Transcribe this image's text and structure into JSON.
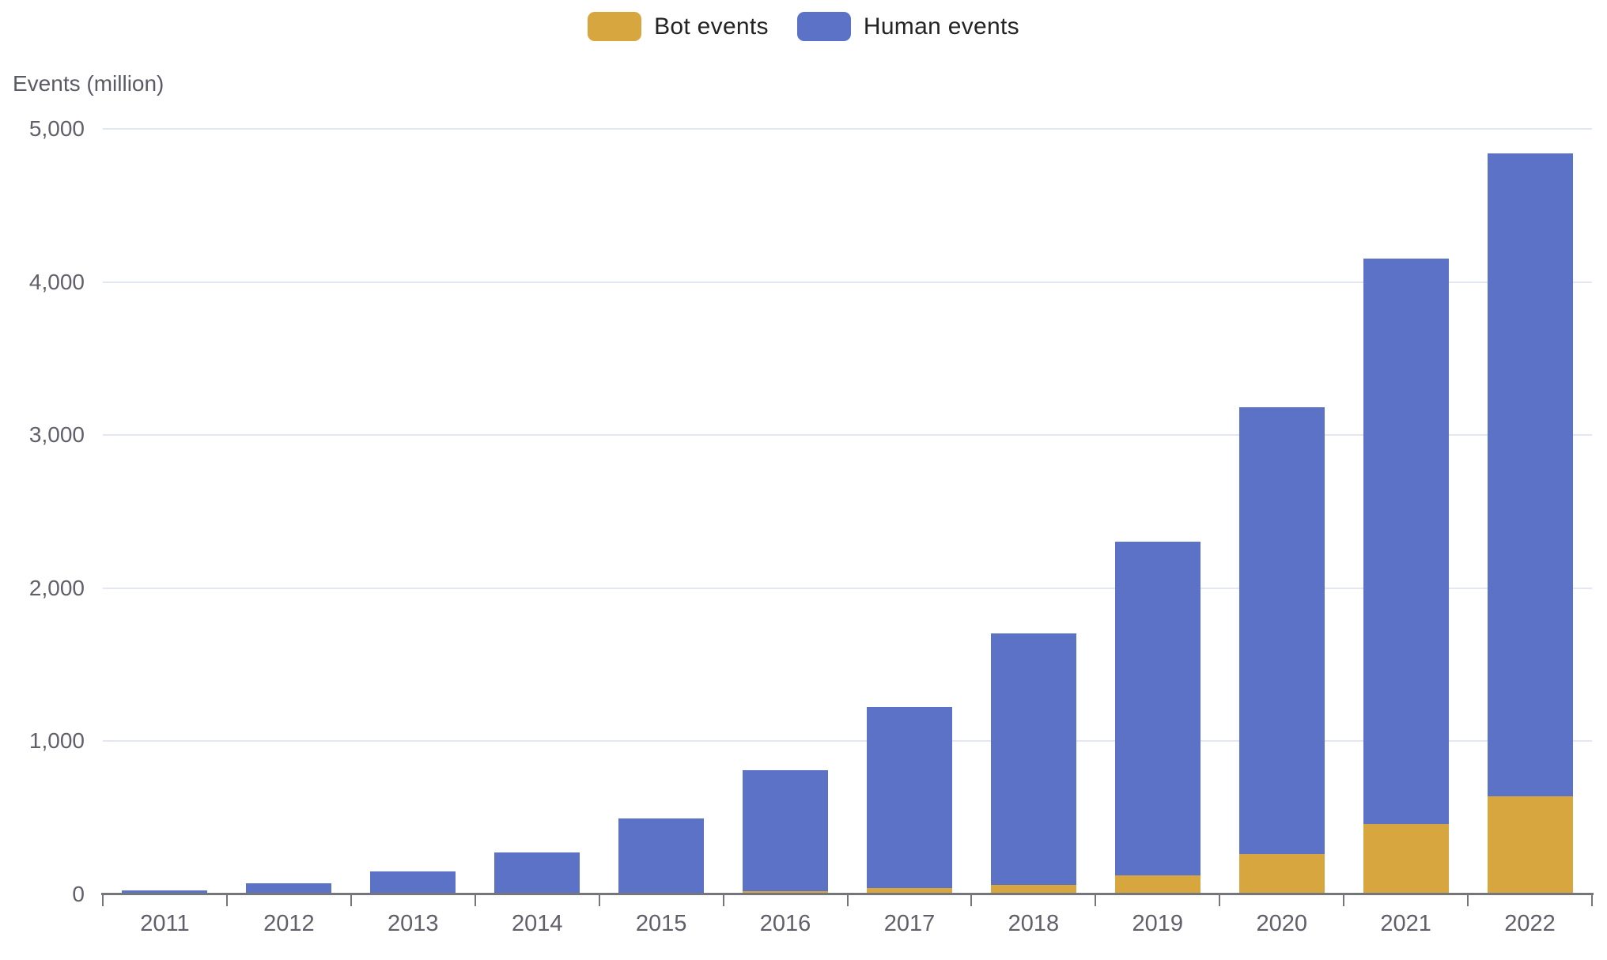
{
  "chart_data": {
    "type": "bar",
    "stacked": true,
    "title": "",
    "ylabel": "Events (million)",
    "xlabel": "",
    "ylim": [
      0,
      5000
    ],
    "ytick_labels": [
      "0",
      "1,000",
      "2,000",
      "3,000",
      "4,000",
      "5,000"
    ],
    "categories": [
      "2011",
      "2012",
      "2013",
      "2014",
      "2015",
      "2016",
      "2017",
      "2018",
      "2019",
      "2020",
      "2021",
      "2022"
    ],
    "series": [
      {
        "name": "Bot events",
        "color": "#D8A63E",
        "values": [
          0,
          0,
          0,
          0,
          10,
          22,
          42,
          62,
          125,
          265,
          458,
          640
        ]
      },
      {
        "name": "Human events",
        "color": "#5B72C6",
        "values": [
          25,
          70,
          150,
          275,
          485,
          790,
          1180,
          1640,
          2180,
          2915,
          3697,
          4200
        ]
      }
    ],
    "totals": [
      25,
      70,
      150,
      275,
      495,
      812,
      1222,
      1702,
      2305,
      3180,
      4155,
      4840
    ],
    "legend_position": "top",
    "grid": true
  },
  "colors": {
    "background": "#FFFFFF",
    "gridline": "#E3E7F3",
    "axis": "#75757C",
    "tick_label": "#5F606A",
    "legend_text": "#232323",
    "bot": "#D8A63E",
    "human": "#5B72C6"
  }
}
